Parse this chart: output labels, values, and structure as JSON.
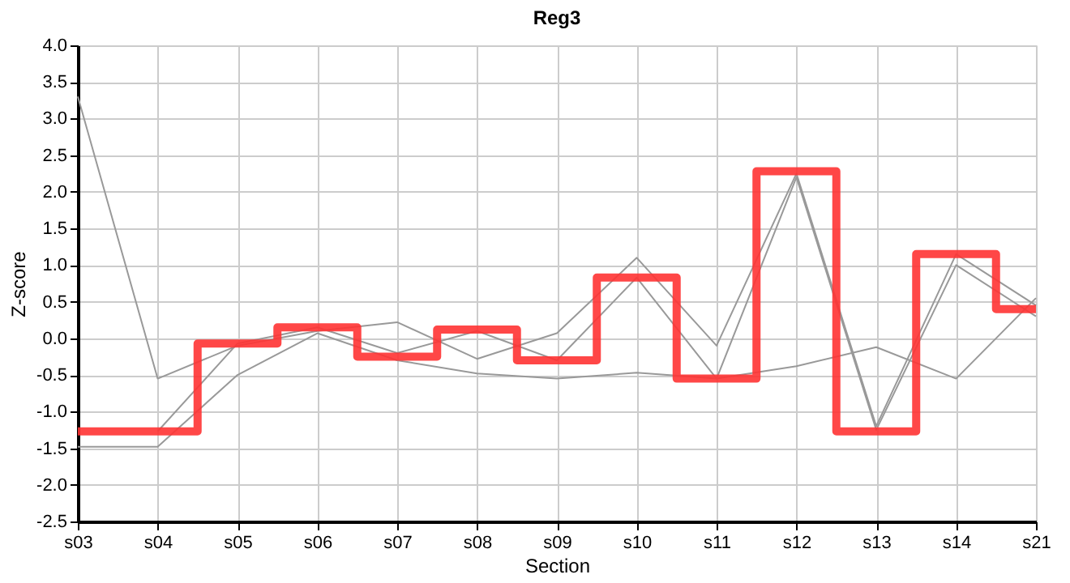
{
  "chart_data": {
    "type": "line",
    "title": "Reg3",
    "xlabel": "Section",
    "ylabel": "Z-score",
    "categories": [
      "s03",
      "s04",
      "s05",
      "s06",
      "s07",
      "s08",
      "s09",
      "s10",
      "s11",
      "s12",
      "s13",
      "s14",
      "s21"
    ],
    "series": [
      {
        "type": "line",
        "color": "#999999",
        "values": [
          3.3,
          -0.55,
          -0.1,
          0.1,
          0.22,
          -0.28,
          0.07,
          1.1,
          -0.1,
          2.25,
          -1.2,
          1.15,
          0.45
        ]
      },
      {
        "type": "line",
        "color": "#999999",
        "values": [
          null,
          -1.27,
          -0.07,
          0.15,
          -0.2,
          0.1,
          -0.3,
          0.83,
          -0.55,
          2.2,
          -1.25,
          1.0,
          0.3
        ]
      },
      {
        "type": "line",
        "color": "#999999",
        "values": [
          -1.48,
          -1.48,
          -0.5,
          0.07,
          -0.3,
          -0.48,
          -0.55,
          -0.47,
          -0.55,
          -0.38,
          -0.12,
          -0.55,
          0.55
        ]
      },
      {
        "type": "step",
        "color": "#ff3333",
        "values": [
          -1.27,
          -1.27,
          -0.07,
          0.15,
          -0.25,
          0.12,
          -0.3,
          0.83,
          -0.55,
          2.28,
          -1.27,
          1.15,
          0.4
        ]
      }
    ],
    "ylim": [
      -2.5,
      4.0
    ],
    "yticks": [
      {
        "value": -2.5,
        "label": "-2.5"
      },
      {
        "value": -2,
        "label": "-2.0"
      },
      {
        "value": -1.5,
        "label": "-1.5"
      },
      {
        "value": -1,
        "label": "-1.0"
      },
      {
        "value": -0.5,
        "label": "-0.5"
      },
      {
        "value": 0,
        "label": "0.0"
      },
      {
        "value": 0.5,
        "label": "0.5"
      },
      {
        "value": 1,
        "label": "1.0"
      },
      {
        "value": 1.5,
        "label": "1.5"
      },
      {
        "value": 2,
        "label": "2.0"
      },
      {
        "value": 2.5,
        "label": "2.5"
      },
      {
        "value": 3,
        "label": "3.0"
      },
      {
        "value": 3.5,
        "label": "3.5"
      },
      {
        "value": 4,
        "label": "4.0"
      }
    ],
    "grid": true,
    "marker": "none",
    "line_style": "solid"
  }
}
